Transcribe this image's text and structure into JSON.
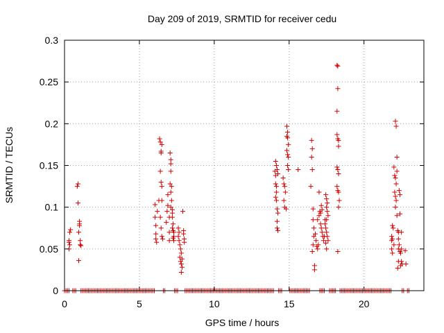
{
  "chart_data": {
    "type": "scatter",
    "title": "Day 209 of 2019, SRMTID for receiver cedu",
    "xlabel": "GPS time / hours",
    "ylabel": "SRMTID / TECUs",
    "xlim": [
      0,
      24
    ],
    "ylim": [
      0,
      0.3
    ],
    "xticks": [
      0,
      5,
      10,
      15,
      20
    ],
    "xtick_labels": [
      "0",
      "5",
      "10",
      "15",
      "20"
    ],
    "yticks": [
      0,
      0.05,
      0.1,
      0.15,
      0.2,
      0.25,
      0.3
    ],
    "ytick_labels": [
      "0",
      "0.05",
      "0.1",
      "0.15",
      "0.2",
      "0.25",
      "0.3"
    ],
    "grid": true,
    "marker": "+",
    "color": "#d00000",
    "series": [
      {
        "name": "SRMTID",
        "points": [
          [
            0.3,
            0.05
          ],
          [
            0.3,
            0.06
          ],
          [
            0.35,
            0.07
          ],
          [
            0.35,
            0.055
          ],
          [
            0.4,
            0.073
          ],
          [
            0.3,
            0.058
          ],
          [
            0.85,
            0.125
          ],
          [
            0.9,
            0.128
          ],
          [
            0.9,
            0.105
          ],
          [
            0.95,
            0.036
          ],
          [
            1.0,
            0.083
          ],
          [
            1.0,
            0.078
          ],
          [
            1.05,
            0.06
          ],
          [
            1.05,
            0.055
          ],
          [
            1.0,
            0.08
          ],
          [
            0.95,
            0.07
          ],
          [
            1.1,
            0.054
          ],
          [
            6.05,
            0.103
          ],
          [
            6.05,
            0.088
          ],
          [
            6.1,
            0.078
          ],
          [
            6.1,
            0.068
          ],
          [
            6.1,
            0.062
          ],
          [
            6.15,
            0.058
          ],
          [
            6.2,
            0.095
          ],
          [
            6.3,
            0.108
          ],
          [
            6.35,
            0.182
          ],
          [
            6.4,
            0.178
          ],
          [
            6.45,
            0.167
          ],
          [
            6.45,
            0.165
          ],
          [
            6.5,
            0.175
          ],
          [
            6.4,
            0.143
          ],
          [
            6.45,
            0.13
          ],
          [
            6.5,
            0.125
          ],
          [
            6.5,
            0.108
          ],
          [
            6.4,
            0.088
          ],
          [
            6.45,
            0.075
          ],
          [
            6.5,
            0.065
          ],
          [
            6.55,
            0.062
          ],
          [
            6.8,
            0.082
          ],
          [
            6.85,
            0.095
          ],
          [
            6.9,
            0.102
          ],
          [
            6.9,
            0.115
          ],
          [
            7.0,
            0.088
          ],
          [
            7.0,
            0.07
          ],
          [
            7.0,
            0.06
          ],
          [
            7.05,
            0.165
          ],
          [
            7.1,
            0.157
          ],
          [
            7.1,
            0.152
          ],
          [
            7.1,
            0.143
          ],
          [
            7.05,
            0.128
          ],
          [
            7.15,
            0.125
          ],
          [
            7.1,
            0.118
          ],
          [
            7.15,
            0.108
          ],
          [
            7.1,
            0.1
          ],
          [
            7.2,
            0.097
          ],
          [
            7.2,
            0.093
          ],
          [
            7.2,
            0.088
          ],
          [
            7.25,
            0.08
          ],
          [
            7.2,
            0.075
          ],
          [
            7.25,
            0.072
          ],
          [
            7.3,
            0.07
          ],
          [
            7.3,
            0.065
          ],
          [
            7.25,
            0.063
          ],
          [
            7.3,
            0.06
          ],
          [
            7.6,
            0.075
          ],
          [
            7.65,
            0.07
          ],
          [
            7.6,
            0.065
          ],
          [
            7.65,
            0.06
          ],
          [
            7.7,
            0.055
          ],
          [
            7.75,
            0.05
          ],
          [
            7.8,
            0.045
          ],
          [
            7.7,
            0.04
          ],
          [
            7.75,
            0.035
          ],
          [
            7.8,
            0.032
          ],
          [
            7.85,
            0.028
          ],
          [
            7.8,
            0.022
          ],
          [
            7.9,
            0.095
          ],
          [
            7.95,
            0.072
          ],
          [
            7.95,
            0.068
          ],
          [
            8.0,
            0.062
          ],
          [
            8.0,
            0.058
          ],
          [
            7.85,
            0.038
          ],
          [
            14.05,
            0.143
          ],
          [
            14.1,
            0.155
          ],
          [
            14.1,
            0.138
          ],
          [
            14.15,
            0.15
          ],
          [
            14.1,
            0.128
          ],
          [
            14.15,
            0.125
          ],
          [
            14.15,
            0.118
          ],
          [
            14.1,
            0.112
          ],
          [
            14.15,
            0.108
          ],
          [
            14.2,
            0.098
          ],
          [
            14.25,
            0.093
          ],
          [
            14.2,
            0.083
          ],
          [
            14.2,
            0.075
          ],
          [
            14.25,
            0.072
          ],
          [
            14.2,
            0.145
          ],
          [
            14.25,
            0.14
          ],
          [
            14.6,
            0.135
          ],
          [
            14.65,
            0.128
          ],
          [
            14.7,
            0.125
          ],
          [
            14.75,
            0.118
          ],
          [
            14.65,
            0.108
          ],
          [
            14.7,
            0.1
          ],
          [
            14.8,
            0.098
          ],
          [
            14.85,
            0.197
          ],
          [
            14.9,
            0.19
          ],
          [
            14.85,
            0.185
          ],
          [
            14.9,
            0.183
          ],
          [
            14.95,
            0.175
          ],
          [
            14.85,
            0.168
          ],
          [
            14.9,
            0.163
          ],
          [
            14.95,
            0.16
          ],
          [
            14.9,
            0.15
          ],
          [
            14.95,
            0.145
          ],
          [
            15.6,
            0.145
          ],
          [
            16.45,
            0.125
          ],
          [
            16.5,
            0.18
          ],
          [
            16.55,
            0.17
          ],
          [
            16.5,
            0.16
          ],
          [
            16.55,
            0.145
          ],
          [
            16.6,
            0.098
          ],
          [
            16.6,
            0.085
          ],
          [
            16.65,
            0.075
          ],
          [
            16.65,
            0.065
          ],
          [
            16.6,
            0.055
          ],
          [
            16.55,
            0.047
          ],
          [
            16.7,
            0.03
          ],
          [
            16.7,
            0.025
          ],
          [
            16.75,
            0.068
          ],
          [
            16.8,
            0.06
          ],
          [
            16.85,
            0.053
          ],
          [
            16.9,
            0.05
          ],
          [
            16.95,
            0.055
          ],
          [
            16.9,
            0.085
          ],
          [
            17.0,
            0.09
          ],
          [
            17.05,
            0.095
          ],
          [
            17.1,
            0.093
          ],
          [
            17.0,
            0.118
          ],
          [
            17.1,
            0.08
          ],
          [
            17.15,
            0.075
          ],
          [
            17.2,
            0.07
          ],
          [
            17.25,
            0.065
          ],
          [
            17.3,
            0.06
          ],
          [
            17.35,
            0.065
          ],
          [
            17.4,
            0.085
          ],
          [
            17.4,
            0.08
          ],
          [
            17.45,
            0.115
          ],
          [
            17.5,
            0.11
          ],
          [
            17.55,
            0.105
          ],
          [
            17.5,
            0.1
          ],
          [
            17.55,
            0.095
          ],
          [
            17.6,
            0.09
          ],
          [
            17.5,
            0.085
          ],
          [
            17.45,
            0.075
          ],
          [
            17.5,
            0.07
          ],
          [
            17.55,
            0.065
          ],
          [
            17.6,
            0.06
          ],
          [
            17.45,
            0.057
          ],
          [
            17.5,
            0.05
          ],
          [
            17.15,
            0.102
          ],
          [
            17.2,
            0.097
          ],
          [
            18.2,
            0.27
          ],
          [
            18.25,
            0.269
          ],
          [
            18.25,
            0.242
          ],
          [
            18.2,
            0.215
          ],
          [
            18.2,
            0.187
          ],
          [
            18.25,
            0.182
          ],
          [
            18.3,
            0.18
          ],
          [
            18.2,
            0.148
          ],
          [
            18.25,
            0.145
          ],
          [
            18.3,
            0.14
          ],
          [
            18.2,
            0.125
          ],
          [
            18.25,
            0.12
          ],
          [
            18.3,
            0.118
          ],
          [
            18.35,
            0.108
          ],
          [
            18.3,
            0.1
          ],
          [
            18.25,
            0.047
          ],
          [
            18.3,
            0.173
          ],
          [
            21.9,
            0.078
          ],
          [
            21.95,
            0.075
          ],
          [
            21.85,
            0.065
          ],
          [
            21.9,
            0.062
          ],
          [
            21.85,
            0.05
          ],
          [
            21.9,
            0.045
          ],
          [
            22.0,
            0.148
          ],
          [
            22.05,
            0.138
          ],
          [
            22.1,
            0.135
          ],
          [
            22.15,
            0.128
          ],
          [
            22.05,
            0.118
          ],
          [
            22.1,
            0.113
          ],
          [
            22.15,
            0.108
          ],
          [
            22.1,
            0.203
          ],
          [
            22.15,
            0.197
          ],
          [
            22.2,
            0.16
          ],
          [
            22.2,
            0.143
          ],
          [
            22.1,
            0.1
          ],
          [
            22.2,
            0.09
          ],
          [
            22.25,
            0.072
          ],
          [
            22.3,
            0.07
          ],
          [
            22.35,
            0.12
          ],
          [
            22.4,
            0.115
          ],
          [
            22.4,
            0.092
          ],
          [
            22.3,
            0.062
          ],
          [
            22.35,
            0.055
          ],
          [
            22.3,
            0.05
          ],
          [
            22.4,
            0.047
          ],
          [
            22.3,
            0.035
          ],
          [
            22.25,
            0.027
          ],
          [
            22.5,
            0.07
          ],
          [
            22.5,
            0.05
          ],
          [
            22.45,
            0.045
          ],
          [
            22.5,
            0.035
          ],
          [
            22.55,
            0.032
          ],
          [
            22.45,
            0.03
          ],
          [
            22.75,
            0.048
          ],
          [
            22.8,
            0.032
          ],
          [
            21.85,
            0.06
          ],
          [
            22.0,
            0.055
          ]
        ],
        "zero_segments": [
          [
            0,
            0.3
          ],
          [
            0.55,
            0.75
          ],
          [
            1.1,
            6.05
          ],
          [
            6.6,
            6.75
          ],
          [
            7.35,
            7.55
          ],
          [
            8.05,
            14.0
          ],
          [
            14.3,
            14.55
          ],
          [
            15.05,
            16.4
          ],
          [
            17.05,
            17.35
          ],
          [
            17.7,
            18.15
          ],
          [
            18.4,
            21.8
          ],
          [
            22.55,
            22.7
          ],
          [
            22.9,
            23.0
          ]
        ],
        "zero_step": 0.1
      }
    ]
  }
}
